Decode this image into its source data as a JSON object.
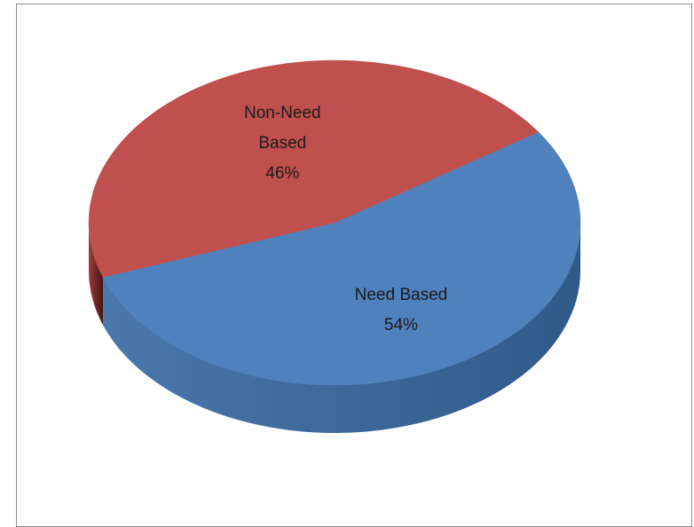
{
  "chart_data": {
    "type": "pie",
    "style": "3d",
    "title": "",
    "categories": [
      "Need Based",
      "Non-Need Based"
    ],
    "values": [
      54,
      46
    ],
    "unit": "%",
    "slices": [
      {
        "label": "Need Based",
        "value": 54,
        "label_lines": [
          "Need Based",
          "54%"
        ],
        "color": "#4f81bd",
        "side_color": "#3a6798"
      },
      {
        "label": "Non-Need Based",
        "value": 46,
        "label_lines": [
          "Non-Need",
          "Based",
          "46%"
        ],
        "color": "#c0504d",
        "side_color": "#5c1f1d"
      }
    ],
    "legend": "none",
    "grid": false
  }
}
